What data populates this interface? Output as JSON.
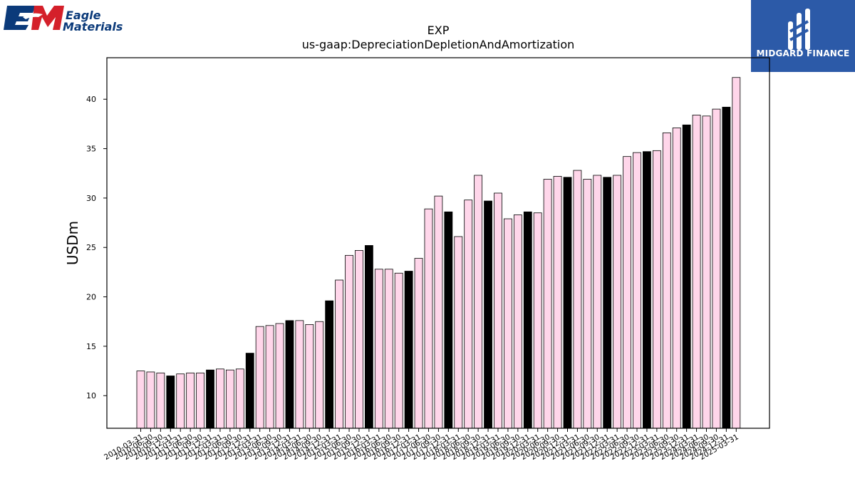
{
  "logos": {
    "left": {
      "mark": "EM",
      "line1": "Eagle",
      "line2": "Materials",
      "brand_color": "#0b3a7a",
      "accent_color": "#d4202a"
    },
    "right": {
      "name": "MIDGARD FINANCE",
      "bg_color": "#2c5aa8"
    }
  },
  "colors": {
    "bar_light": "#ffd6ea",
    "bar_dark": "#000000",
    "edge": "#000000"
  },
  "chart_data": {
    "type": "bar",
    "title": "EXP",
    "subtitle": "us-gaap:DepreciationDepletionAndAmortization",
    "xlabel": "",
    "ylabel": "USDm",
    "ylim": [
      6.7,
      44.2
    ],
    "yticks": [
      10,
      15,
      20,
      25,
      30,
      35,
      40
    ],
    "grid": false,
    "categories": [
      "2010-03-31",
      "2010-06-30",
      "2010-09-30",
      "2010-12-31",
      "2011-03-31",
      "2011-06-30",
      "2011-09-30",
      "2011-12-31",
      "2012-03-31",
      "2012-06-30",
      "2012-09-30",
      "2012-12-31",
      "2013-03-31",
      "2013-06-30",
      "2013-09-30",
      "2013-12-31",
      "2014-03-31",
      "2014-06-30",
      "2014-09-30",
      "2014-12-31",
      "2015-03-31",
      "2015-06-30",
      "2015-09-30",
      "2015-12-31",
      "2016-03-31",
      "2016-06-30",
      "2016-09-30",
      "2016-12-31",
      "2017-03-31",
      "2017-06-30",
      "2017-09-30",
      "2017-12-31",
      "2018-03-31",
      "2018-06-30",
      "2018-09-30",
      "2018-12-31",
      "2019-03-31",
      "2019-06-30",
      "2019-09-30",
      "2019-12-31",
      "2020-03-31",
      "2020-06-30",
      "2020-09-30",
      "2020-12-31",
      "2021-03-31",
      "2021-06-30",
      "2021-09-30",
      "2021-12-31",
      "2022-03-31",
      "2022-06-30",
      "2022-09-30",
      "2022-12-31",
      "2023-03-31",
      "2023-06-30",
      "2023-09-30",
      "2023-12-31",
      "2024-03-31",
      "2024-06-30",
      "2024-09-30",
      "2024-12-31",
      "2025-03-31"
    ],
    "values": [
      12.5,
      12.4,
      12.3,
      12.0,
      12.2,
      12.3,
      12.3,
      12.6,
      12.7,
      12.6,
      12.7,
      14.3,
      17.0,
      17.1,
      17.3,
      17.6,
      17.6,
      17.2,
      17.5,
      19.6,
      21.7,
      24.2,
      24.7,
      25.2,
      22.8,
      22.8,
      22.4,
      22.6,
      23.9,
      28.9,
      30.2,
      28.6,
      26.1,
      29.8,
      32.3,
      29.7,
      30.5,
      27.9,
      28.3,
      28.6,
      28.5,
      31.9,
      32.2,
      32.1,
      32.8,
      31.9,
      32.3,
      32.1,
      32.3,
      34.2,
      34.6,
      34.7,
      34.8,
      36.6,
      37.1,
      37.4,
      38.4,
      38.3,
      39.0,
      39.2,
      42.2
    ],
    "highlight": [
      false,
      false,
      false,
      true,
      false,
      false,
      false,
      true,
      false,
      false,
      false,
      true,
      false,
      false,
      false,
      true,
      false,
      false,
      false,
      true,
      false,
      false,
      false,
      true,
      false,
      false,
      false,
      true,
      false,
      false,
      false,
      true,
      false,
      false,
      false,
      true,
      false,
      false,
      false,
      true,
      false,
      false,
      false,
      true,
      false,
      false,
      false,
      true,
      false,
      false,
      false,
      true,
      false,
      false,
      false,
      true,
      false,
      false,
      false,
      true,
      false
    ]
  }
}
